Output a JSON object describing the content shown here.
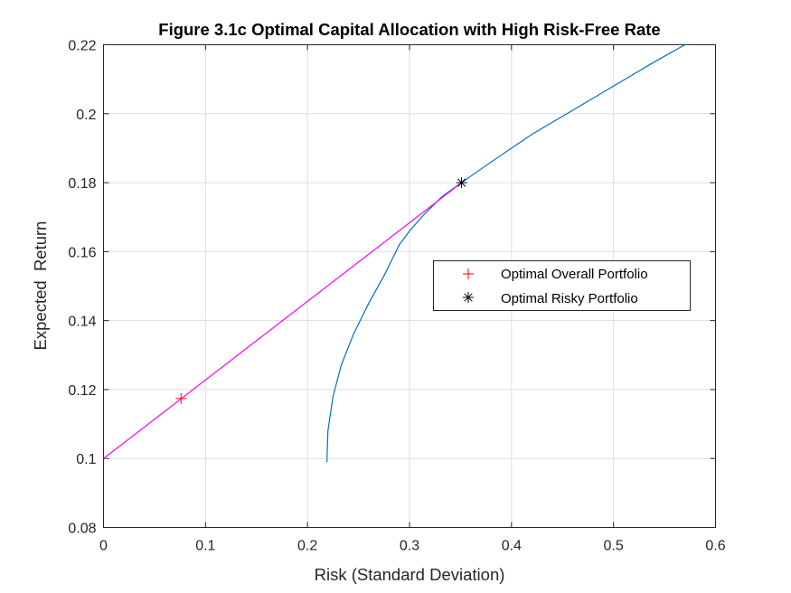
{
  "chart_data": {
    "type": "line",
    "title": "Figure 3.1c Optimal Capital Allocation with High Risk-Free Rate",
    "xlabel": "Risk (Standard Deviation)",
    "ylabel": "Expected  Return",
    "xlim": [
      0,
      0.6
    ],
    "ylim": [
      0.08,
      0.22
    ],
    "xticks": [
      0,
      0.1,
      0.2,
      0.3,
      0.4,
      0.5,
      0.6
    ],
    "xtick_labels": [
      "0",
      "0.1",
      "0.2",
      "0.3",
      "0.4",
      "0.5",
      "0.6"
    ],
    "yticks": [
      0.08,
      0.1,
      0.12,
      0.14,
      0.16,
      0.18,
      0.2,
      0.22
    ],
    "ytick_labels": [
      "0.08",
      "0.1",
      "0.12",
      "0.14",
      "0.16",
      "0.18",
      "0.2",
      "0.22"
    ],
    "grid": true,
    "legend_location": "right",
    "series": [
      {
        "kind": "line",
        "color": "#0072BD",
        "x": [
          0.219,
          0.22,
          0.225,
          0.233,
          0.245,
          0.26,
          0.275,
          0.29,
          0.3,
          0.315,
          0.332,
          0.351,
          0.38,
          0.42,
          0.46,
          0.5,
          0.54,
          0.57
        ],
        "y": [
          0.099,
          0.108,
          0.118,
          0.127,
          0.136,
          0.145,
          0.153,
          0.162,
          0.166,
          0.171,
          0.176,
          0.18,
          0.186,
          0.194,
          0.201,
          0.208,
          0.215,
          0.22
        ]
      },
      {
        "kind": "line",
        "color": "#FF00FF",
        "x": [
          0,
          0.351
        ],
        "y": [
          0.1,
          0.18
        ]
      },
      {
        "name": "Optimal Overall Portfolio",
        "kind": "marker",
        "marker": "+",
        "color": "#FF0000",
        "x": [
          0.076
        ],
        "y": [
          0.1174
        ]
      },
      {
        "name": "Optimal Risky Portfolio",
        "kind": "marker",
        "marker": "*",
        "color": "#000000",
        "x": [
          0.351
        ],
        "y": [
          0.18
        ]
      }
    ]
  }
}
